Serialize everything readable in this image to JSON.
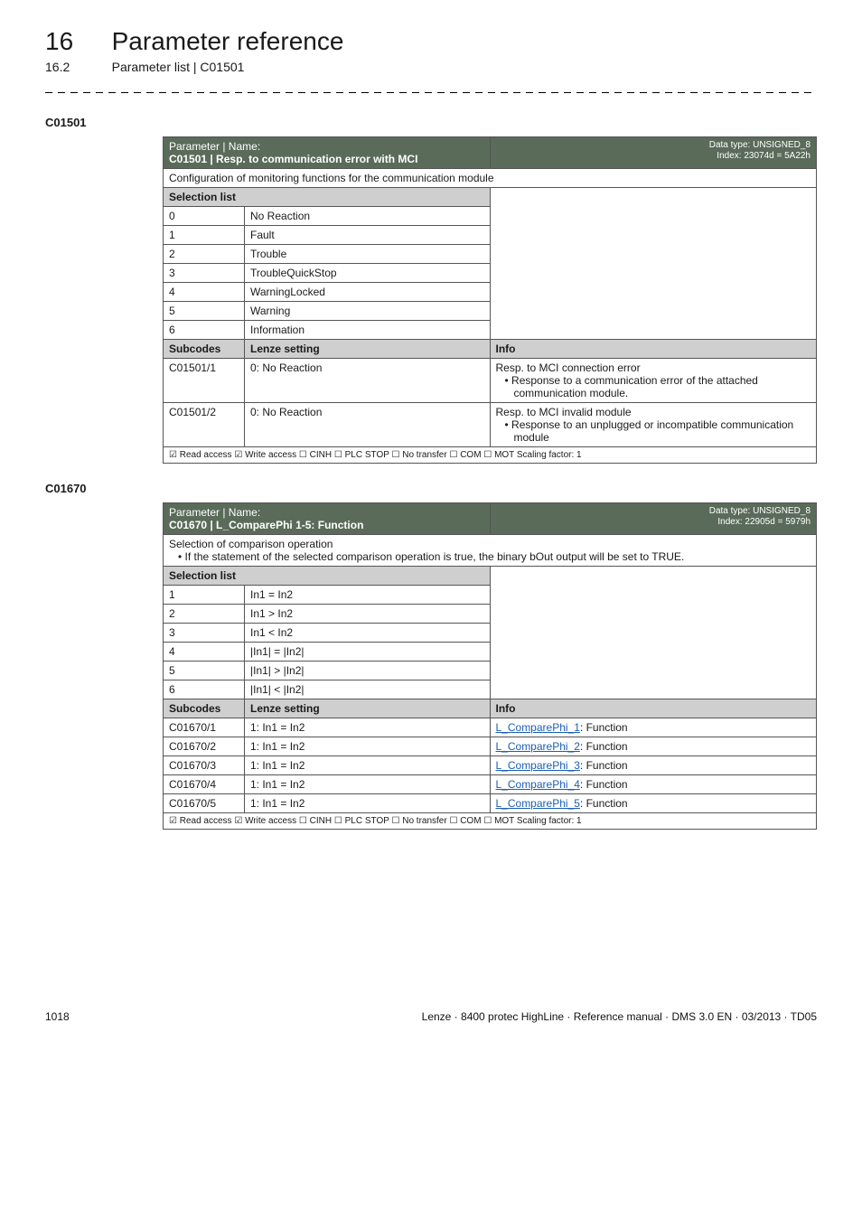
{
  "header": {
    "chapter_num": "16",
    "chapter_title": "Parameter reference",
    "section_num": "16.2",
    "section_title": "Parameter list | C01501"
  },
  "t1": {
    "code": "C01501",
    "param_label": "Parameter | Name:",
    "param_name": "C01501 | Resp. to communication error with MCI",
    "dtype_l1": "Data type: UNSIGNED_8",
    "dtype_l2": "Index: 23074d = 5A22h",
    "desc": "Configuration of monitoring functions for the communication module",
    "sel_list": "Selection list",
    "rows": [
      {
        "n": "0",
        "v": "No Reaction"
      },
      {
        "n": "1",
        "v": "Fault"
      },
      {
        "n": "2",
        "v": "Trouble"
      },
      {
        "n": "3",
        "v": "TroubleQuickStop"
      },
      {
        "n": "4",
        "v": "WarningLocked"
      },
      {
        "n": "5",
        "v": "Warning"
      },
      {
        "n": "6",
        "v": "Information"
      }
    ],
    "sub_h1": "Subcodes",
    "sub_h2": "Lenze setting",
    "sub_h3": "Info",
    "subs": [
      {
        "c": "C01501/1",
        "s": "0: No Reaction",
        "i1": "Resp. to MCI connection error",
        "i2": "• Response to a communication error of the attached communication module."
      },
      {
        "c": "C01501/2",
        "s": "0: No Reaction",
        "i1": "Resp. to MCI invalid module",
        "i2": "• Response to an unplugged or incompatible communication module"
      }
    ],
    "footer": "☑ Read access   ☑ Write access   ☐ CINH   ☐ PLC STOP   ☐ No transfer   ☐ COM   ☐ MOT    Scaling factor: 1"
  },
  "t2": {
    "code": "C01670",
    "param_label": "Parameter | Name:",
    "param_name": "C01670 | L_ComparePhi 1-5: Function",
    "dtype_l1": "Data type: UNSIGNED_8",
    "dtype_l2": "Index: 22905d = 5979h",
    "desc_l1": "Selection of comparison operation",
    "desc_l2": "• If the statement of the selected comparison operation is true, the binary bOut output will be set to TRUE.",
    "sel_list": "Selection list",
    "rows": [
      {
        "n": "1",
        "v": "In1 = In2"
      },
      {
        "n": "2",
        "v": "In1 > In2"
      },
      {
        "n": "3",
        "v": "In1 < In2"
      },
      {
        "n": "4",
        "v": "|In1| = |In2|"
      },
      {
        "n": "5",
        "v": "|In1| > |In2|"
      },
      {
        "n": "6",
        "v": "|In1| < |In2|"
      }
    ],
    "sub_h1": "Subcodes",
    "sub_h2": "Lenze setting",
    "sub_h3": "Info",
    "subs": [
      {
        "c": "C01670/1",
        "s": "1: In1 = In2",
        "link": "L_ComparePhi_1",
        "tail": ": Function"
      },
      {
        "c": "C01670/2",
        "s": "1: In1 = In2",
        "link": "L_ComparePhi_2",
        "tail": ": Function"
      },
      {
        "c": "C01670/3",
        "s": "1: In1 = In2",
        "link": "L_ComparePhi_3",
        "tail": ": Function"
      },
      {
        "c": "C01670/4",
        "s": "1: In1 = In2",
        "link": "L_ComparePhi_4",
        "tail": ": Function"
      },
      {
        "c": "C01670/5",
        "s": "1: In1 = In2",
        "link": "L_ComparePhi_5",
        "tail": ": Function"
      }
    ],
    "footer": "☑ Read access   ☑ Write access   ☐ CINH   ☐ PLC STOP   ☐ No transfer   ☐ COM   ☐ MOT    Scaling factor: 1"
  },
  "footer": {
    "page": "1018",
    "text": "Lenze · 8400 protec HighLine · Reference manual · DMS 3.0 EN · 03/2013 · TD05"
  }
}
